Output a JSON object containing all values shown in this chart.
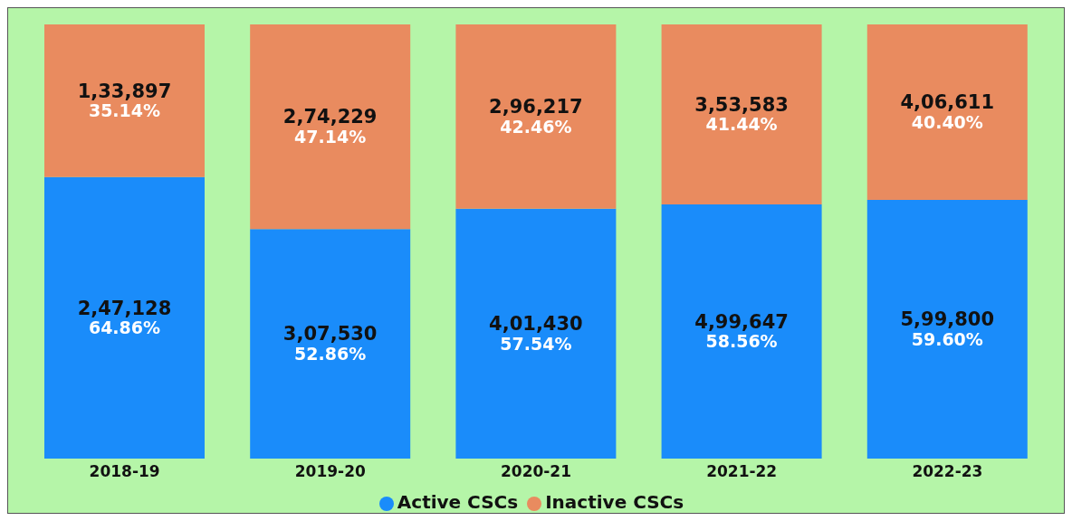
{
  "chart_data": {
    "type": "bar",
    "stacked": true,
    "categories": [
      "2018-19",
      "2019-20",
      "2020-21",
      "2021-22",
      "2022-23"
    ],
    "series": [
      {
        "name": "Active CSCs",
        "color": "#1a8cfa",
        "values": [
          64.86,
          52.86,
          57.54,
          58.56,
          59.6
        ],
        "value_labels": [
          "2,47,128\n64.86%",
          "3,07,530\n52.86%",
          "4,01,430\n57.54%",
          "4,99,647\n58.56%",
          "5,99,800\n59.60%"
        ]
      },
      {
        "name": "Inactive CSCs",
        "color": "#e98b5f",
        "values": [
          35.14,
          47.14,
          42.46,
          41.44,
          40.4
        ],
        "value_labels": [
          "1,33,897\n35.14%",
          "2,74,229\n47.14%",
          "2,96,217\n42.46%",
          "3,53,583\n41.44%",
          "4,06,611\n40.40%"
        ]
      }
    ],
    "ylim": [
      0,
      100
    ],
    "tick_labels": "x",
    "legend": "bottom"
  }
}
